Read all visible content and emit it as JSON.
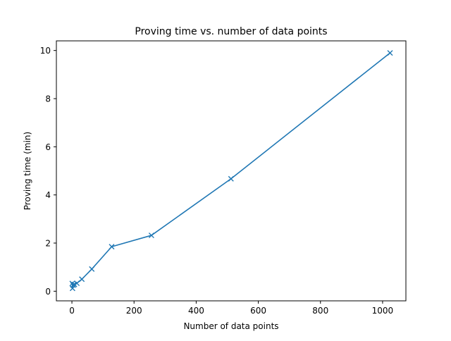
{
  "chart_data": {
    "type": "line",
    "title": "Proving time vs. number of data points",
    "xlabel": "Number of data points",
    "ylabel": "Proving time (min)",
    "xlim": [
      -50,
      1075
    ],
    "ylim": [
      -0.4,
      10.4
    ],
    "xticks": [
      0,
      200,
      400,
      600,
      800,
      1000
    ],
    "yticks": [
      0,
      2,
      4,
      6,
      8,
      10
    ],
    "grid": false,
    "marker": "x",
    "series": [
      {
        "color": "#1f77b4",
        "x": [
          1,
          2,
          4,
          8,
          16,
          32,
          64,
          128,
          256,
          512,
          1024
        ],
        "y": [
          0.32,
          0.12,
          0.25,
          0.28,
          0.33,
          0.5,
          0.92,
          1.85,
          2.32,
          4.67,
          9.9
        ]
      }
    ]
  }
}
